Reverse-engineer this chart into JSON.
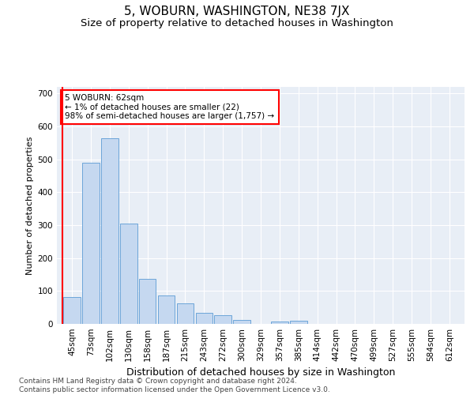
{
  "title": "5, WOBURN, WASHINGTON, NE38 7JX",
  "subtitle": "Size of property relative to detached houses in Washington",
  "xlabel": "Distribution of detached houses by size in Washington",
  "ylabel": "Number of detached properties",
  "categories": [
    "45sqm",
    "73sqm",
    "102sqm",
    "130sqm",
    "158sqm",
    "187sqm",
    "215sqm",
    "243sqm",
    "272sqm",
    "300sqm",
    "329sqm",
    "357sqm",
    "385sqm",
    "414sqm",
    "442sqm",
    "470sqm",
    "499sqm",
    "527sqm",
    "555sqm",
    "584sqm",
    "612sqm"
  ],
  "values": [
    82,
    490,
    565,
    305,
    138,
    87,
    63,
    33,
    27,
    11,
    0,
    8,
    10,
    0,
    0,
    0,
    0,
    0,
    0,
    0,
    0
  ],
  "bar_color": "#c5d8f0",
  "bar_edge_color": "#5b9bd5",
  "background_color": "#e8eef6",
  "annotation_text": "5 WOBURN: 62sqm\n← 1% of detached houses are smaller (22)\n98% of semi-detached houses are larger (1,757) →",
  "annotation_box_color": "white",
  "annotation_box_edge_color": "red",
  "marker_line_color": "red",
  "ylim": [
    0,
    720
  ],
  "yticks": [
    0,
    100,
    200,
    300,
    400,
    500,
    600,
    700
  ],
  "footer": "Contains HM Land Registry data © Crown copyright and database right 2024.\nContains public sector information licensed under the Open Government Licence v3.0.",
  "title_fontsize": 11,
  "subtitle_fontsize": 9.5,
  "xlabel_fontsize": 9,
  "ylabel_fontsize": 8,
  "tick_fontsize": 7.5,
  "footer_fontsize": 6.5
}
